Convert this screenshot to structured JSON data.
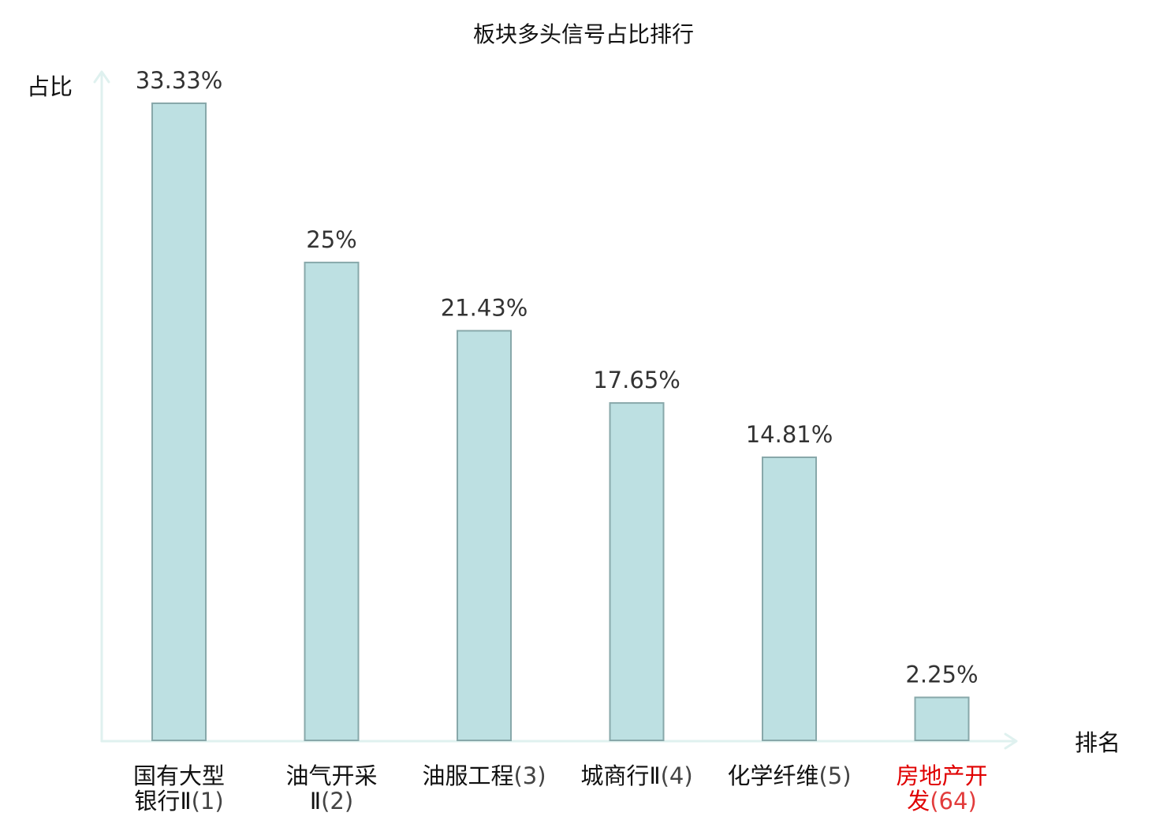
{
  "chart_data": {
    "type": "bar",
    "title": "板块多头信号占比排行",
    "ylabel": "占比",
    "xlabel": "排名",
    "categories": [
      [
        "国有大型",
        "银行Ⅱ(1)"
      ],
      [
        "油气开采",
        "Ⅱ(2)"
      ],
      [
        "油服工程(3)"
      ],
      [
        "城商行Ⅱ(4)"
      ],
      [
        "化学纤维(5)"
      ],
      [
        "房地产开",
        "发(64)"
      ]
    ],
    "values": [
      33.33,
      25,
      21.43,
      17.65,
      14.81,
      2.25
    ],
    "value_labels": [
      "33.33%",
      "25%",
      "21.43%",
      "17.65%",
      "14.81%",
      "2.25%"
    ],
    "highlight_index": 5,
    "ylim": [
      0,
      33.33
    ],
    "grid": false,
    "colors": {
      "bar_fill": "#bde0e2",
      "bar_stroke": "#88a8aa",
      "axis": "#dff1ef",
      "highlight_text": "#e00000"
    }
  }
}
